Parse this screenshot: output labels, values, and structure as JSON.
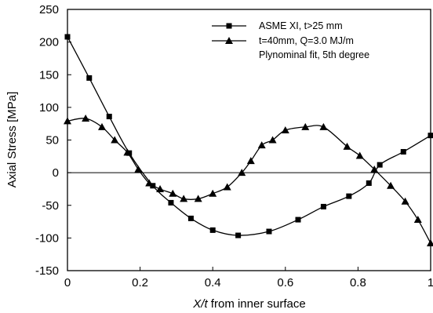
{
  "chart_data": {
    "type": "line",
    "xlabel_italic": "X/t",
    "xlabel_rest": " from inner surface",
    "ylabel": "Axial Stress [MPa]",
    "xlim": [
      0,
      1
    ],
    "ylim": [
      -150,
      250
    ],
    "xticks": [
      0,
      0.2,
      0.4,
      0.6,
      0.8,
      1
    ],
    "xtick_labels": [
      "0",
      "0.2",
      "0.4",
      "0.6",
      "0.8",
      "1"
    ],
    "yticks": [
      -150,
      -100,
      -50,
      0,
      50,
      100,
      150,
      200,
      250
    ],
    "ytick_labels": [
      "-150",
      "-100",
      "-50",
      "0",
      "50",
      "100",
      "150",
      "200",
      "250"
    ],
    "zero_line": true,
    "grid": false,
    "legend_placement": "top-right",
    "series": [
      {
        "name": "ASME XI, t>25 mm",
        "marker": "square",
        "x": [
          0,
          0.06,
          0.115,
          0.17,
          0.235,
          0.285,
          0.34,
          0.4,
          0.47,
          0.555,
          0.635,
          0.705,
          0.775,
          0.83,
          0.86,
          0.925,
          1.0
        ],
        "y": [
          208,
          145,
          86,
          30,
          -20,
          -46,
          -70,
          -88,
          -96,
          -90,
          -72,
          -52,
          -36,
          -16,
          12,
          32,
          57
        ]
      },
      {
        "name": "t=40mm, Q=3.0 MJ/m",
        "marker": "triangle",
        "x": [
          0,
          0.05,
          0.095,
          0.13,
          0.165,
          0.195,
          0.225,
          0.255,
          0.29,
          0.32,
          0.36,
          0.4,
          0.44,
          0.48,
          0.505,
          0.535,
          0.565,
          0.6,
          0.655,
          0.705,
          0.77,
          0.805,
          0.845,
          0.89,
          0.93,
          0.965,
          1.0
        ],
        "y": [
          79,
          83,
          70,
          50,
          31,
          5,
          -16,
          -25,
          -32,
          -40,
          -40,
          -32,
          -22,
          0,
          18,
          42,
          50,
          65,
          70,
          70,
          40,
          26,
          5,
          -20,
          -44,
          -72,
          -108
        ]
      },
      {
        "name": "Plynominal fit, 5th degree",
        "marker": "none"
      }
    ]
  }
}
